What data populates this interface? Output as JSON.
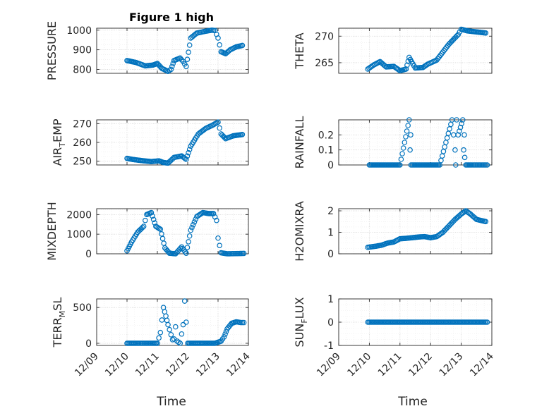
{
  "figure": {
    "title": "Figure 1 high"
  },
  "colors": {
    "marker": "#0072BD",
    "axis": "#262626",
    "grid": "#d9d9d9",
    "minor_grid": "#ececec"
  },
  "chart_data": [
    {
      "type": "scatter",
      "ylabel": "PRESSURE",
      "ylim": [
        780,
        1010
      ],
      "yticks": [
        800,
        900,
        1000
      ],
      "ytick_labels": [
        "800",
        "900",
        "1000"
      ],
      "x": [
        10.0,
        10.3,
        10.6,
        10.85,
        11.0,
        11.15,
        11.35,
        11.45,
        11.55,
        11.75,
        11.85,
        11.95,
        12.1,
        12.3,
        12.6,
        12.8,
        12.9,
        13.0,
        13.1,
        13.25,
        13.4,
        13.6,
        13.8
      ],
      "y": [
        845,
        835,
        818,
        822,
        830,
        805,
        790,
        800,
        845,
        858,
        840,
        815,
        960,
        985,
        995,
        1000,
        998,
        960,
        890,
        880,
        900,
        915,
        922
      ]
    },
    {
      "type": "scatter",
      "ylabel": "THETA",
      "ylim": [
        263,
        271.5
      ],
      "yticks": [
        265,
        270
      ],
      "ytick_labels": [
        "265",
        "270"
      ],
      "x": [
        9.95,
        10.15,
        10.35,
        10.55,
        10.8,
        11.0,
        11.2,
        11.3,
        11.5,
        11.75,
        11.9,
        12.2,
        12.6,
        12.9,
        13.0,
        13.2,
        13.5,
        13.8
      ],
      "y": [
        263.8,
        264.6,
        265.2,
        264.2,
        264.3,
        263.5,
        263.8,
        266.0,
        264.0,
        264.1,
        264.7,
        265.5,
        268.5,
        270.3,
        271.3,
        271.0,
        270.8,
        270.6
      ]
    },
    {
      "type": "scatter",
      "ylabel": "AIR_TEMP",
      "ylim": [
        248,
        272
      ],
      "yticks": [
        250,
        260,
        270
      ],
      "ytick_labels": [
        "250",
        "260",
        "270"
      ],
      "x": [
        10.0,
        10.2,
        10.5,
        10.8,
        11.05,
        11.2,
        11.35,
        11.55,
        11.8,
        11.95,
        12.1,
        12.35,
        12.6,
        12.8,
        13.0,
        13.1,
        13.25,
        13.5,
        13.8
      ],
      "y": [
        251.5,
        250.9,
        250.3,
        249.8,
        250.2,
        249.3,
        249.0,
        252.0,
        252.8,
        251.0,
        258.0,
        264.5,
        267.5,
        269.0,
        270.8,
        264.5,
        262.0,
        263.5,
        264.2
      ]
    },
    {
      "type": "scatter",
      "ylabel": "RAINFALL",
      "ylim": [
        0,
        0.3
      ],
      "yticks": [
        0,
        0.1,
        0.2
      ],
      "ytick_labels": [
        "0",
        "0.1",
        "0.2"
      ],
      "x": [
        10.0,
        10.5,
        11.0,
        11.3,
        11.35,
        11.33,
        11.36,
        11.8,
        12.3,
        12.7,
        12.75,
        12.8,
        12.82,
        12.85,
        12.9,
        13.05,
        13.1,
        13.08,
        13.15,
        13.3,
        13.6,
        13.85
      ],
      "y": [
        0,
        0,
        0,
        0.3,
        0.2,
        0.1,
        0,
        0,
        0,
        0.3,
        0.2,
        0.1,
        0,
        0.3,
        0.2,
        0.3,
        0.2,
        0.1,
        0,
        0,
        0,
        0
      ]
    },
    {
      "type": "scatter",
      "ylabel": "MIXDEPTH",
      "ylim": [
        0,
        2300
      ],
      "yticks": [
        0,
        1000,
        2000
      ],
      "ytick_labels": [
        "0",
        "1000",
        "2000"
      ],
      "x": [
        10.0,
        10.15,
        10.35,
        10.55,
        10.65,
        10.8,
        10.95,
        11.1,
        11.25,
        11.4,
        11.6,
        11.8,
        11.95,
        12.1,
        12.3,
        12.5,
        12.7,
        12.85,
        12.95,
        13.0,
        13.1,
        13.3,
        13.6,
        13.85
      ],
      "y": [
        150,
        600,
        1100,
        1400,
        2000,
        2100,
        1400,
        1250,
        300,
        30,
        0,
        350,
        30,
        1200,
        1900,
        2100,
        2050,
        2050,
        1700,
        800,
        50,
        0,
        10,
        20
      ]
    },
    {
      "type": "scatter",
      "ylabel": "H2OMIXRA",
      "ylim": [
        0,
        2.1
      ],
      "yticks": [
        0,
        1,
        2
      ],
      "ytick_labels": [
        "0",
        "1",
        "2"
      ],
      "x": [
        9.95,
        10.2,
        10.4,
        10.6,
        10.8,
        11.0,
        11.2,
        11.4,
        11.6,
        11.8,
        12.0,
        12.2,
        12.4,
        12.6,
        12.8,
        13.0,
        13.15,
        13.3,
        13.5,
        13.8
      ],
      "y": [
        0.3,
        0.35,
        0.4,
        0.5,
        0.55,
        0.7,
        0.72,
        0.75,
        0.78,
        0.8,
        0.75,
        0.8,
        1.0,
        1.3,
        1.6,
        1.85,
        2.0,
        1.85,
        1.6,
        1.5
      ]
    },
    {
      "type": "scatter",
      "ylabel": "TERR_MSL",
      "ylim": [
        -30,
        620
      ],
      "yticks": [
        0,
        500
      ],
      "ytick_labels": [
        "0",
        "500"
      ],
      "x": [
        10.0,
        10.3,
        10.6,
        10.85,
        11.0,
        11.1,
        11.2,
        11.28,
        11.35,
        11.45,
        11.5,
        11.55,
        11.6,
        11.65,
        11.75,
        11.85,
        11.9,
        12.0,
        12.2,
        12.5,
        12.7,
        12.9,
        13.1,
        13.2,
        13.3,
        13.45,
        13.6,
        13.75,
        13.85
      ],
      "y": [
        0,
        0,
        0,
        0,
        0,
        150,
        500,
        380,
        260,
        120,
        50,
        60,
        230,
        30,
        0,
        260,
        590,
        0,
        0,
        0,
        0,
        0,
        30,
        90,
        200,
        280,
        300,
        290,
        290
      ]
    },
    {
      "type": "scatter",
      "ylabel": "SUN_FLUX",
      "ylim": [
        -1,
        1
      ],
      "yticks": [
        -1,
        0,
        1
      ],
      "ytick_labels": [
        "-1",
        "0",
        "1"
      ],
      "x": [
        9.95,
        10.5,
        11.0,
        11.5,
        12.0,
        12.5,
        13.0,
        13.5,
        13.85
      ],
      "y": [
        0,
        0,
        0,
        0,
        0,
        0,
        0,
        0,
        0
      ]
    }
  ],
  "xaxis": {
    "xlim": [
      9.0,
      14.0
    ],
    "ticks": [
      9,
      10,
      11,
      12,
      13,
      14
    ],
    "tick_labels": [
      "12/09",
      "12/10",
      "12/11",
      "12/12",
      "12/13",
      "12/14"
    ],
    "label": "Time"
  }
}
